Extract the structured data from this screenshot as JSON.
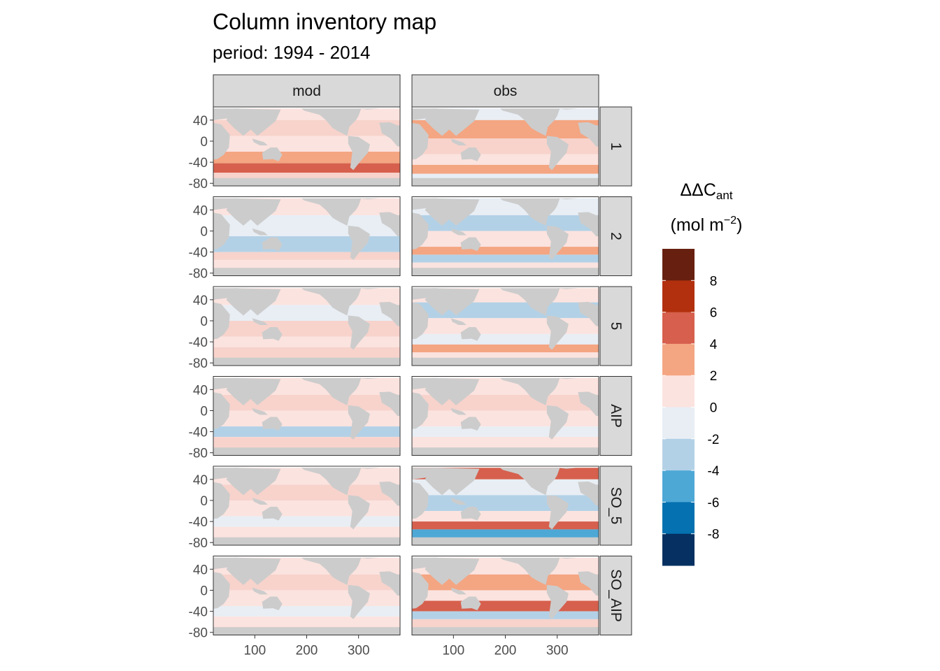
{
  "chart_data": {
    "type": "heatmap",
    "title": "Column inventory map",
    "subtitle": "period: 1994 - 2014",
    "xlabel": "",
    "ylabel": "",
    "facet_columns": [
      "mod",
      "obs"
    ],
    "facet_rows": [
      "1",
      "2",
      "5",
      "AIP",
      "SO_5",
      "SO_AIP"
    ],
    "xlim": [
      20,
      380
    ],
    "ylim": [
      -85,
      65
    ],
    "x_ticks": [
      "100",
      "200",
      "300"
    ],
    "y_ticks": [
      "40",
      "0",
      "-40",
      "-80"
    ],
    "land_color": "#cccccc",
    "legend": {
      "title": "ΔΔC",
      "title_subscript": "ant",
      "unit_prefix": "(mol m",
      "unit_superscript": "−2",
      "unit_suffix": ")",
      "placement": "right",
      "breaks": [
        "8",
        "6",
        "4",
        "2",
        "0",
        "-2",
        "-4",
        "-6",
        "-8"
      ],
      "colors_top_to_bottom": [
        "#67200f",
        "#b2300e",
        "#d6604d",
        "#f4a582",
        "#fbe3df",
        "#e8eef4",
        "#b3d1e6",
        "#4ea8d6",
        "#0571b0",
        "#053061"
      ]
    },
    "panels": [
      {
        "row": "1",
        "col": "mod",
        "bands": [
          {
            "lat": [
              40,
              62
            ],
            "level": 0
          },
          {
            "lat": [
              10,
              40
            ],
            "level": 1
          },
          {
            "lat": [
              -20,
              10
            ],
            "level": 0
          },
          {
            "lat": [
              -42,
              -20
            ],
            "level": 2
          },
          {
            "lat": [
              -60,
              -42
            ],
            "level": 3
          },
          {
            "lat": [
              -72,
              -60
            ],
            "level": 1
          }
        ]
      },
      {
        "row": "1",
        "col": "obs",
        "bands": [
          {
            "lat": [
              40,
              62
            ],
            "level": -1
          },
          {
            "lat": [
              5,
              40
            ],
            "level": 2
          },
          {
            "lat": [
              -25,
              5
            ],
            "level": 1
          },
          {
            "lat": [
              -45,
              -25
            ],
            "level": 0
          },
          {
            "lat": [
              -62,
              -45
            ],
            "level": 2
          },
          {
            "lat": [
              -72,
              -62
            ],
            "level": -1
          }
        ]
      },
      {
        "row": "2",
        "col": "mod",
        "bands": [
          {
            "lat": [
              30,
              62
            ],
            "level": 0
          },
          {
            "lat": [
              -10,
              30
            ],
            "level": -1
          },
          {
            "lat": [
              -40,
              -10
            ],
            "level": -2
          },
          {
            "lat": [
              -55,
              -40
            ],
            "level": 1
          },
          {
            "lat": [
              -72,
              -55
            ],
            "level": 0
          }
        ]
      },
      {
        "row": "2",
        "col": "obs",
        "bands": [
          {
            "lat": [
              30,
              62
            ],
            "level": -1
          },
          {
            "lat": [
              0,
              30
            ],
            "level": -2
          },
          {
            "lat": [
              -30,
              0
            ],
            "level": 0
          },
          {
            "lat": [
              -45,
              -30
            ],
            "level": 2
          },
          {
            "lat": [
              -60,
              -45
            ],
            "level": -2
          },
          {
            "lat": [
              -72,
              -60
            ],
            "level": 0
          }
        ]
      },
      {
        "row": "5",
        "col": "mod",
        "bands": [
          {
            "lat": [
              30,
              62
            ],
            "level": 0
          },
          {
            "lat": [
              0,
              30
            ],
            "level": -1
          },
          {
            "lat": [
              -30,
              0
            ],
            "level": 1
          },
          {
            "lat": [
              -50,
              -30
            ],
            "level": 0
          },
          {
            "lat": [
              -72,
              -50
            ],
            "level": 1
          }
        ]
      },
      {
        "row": "5",
        "col": "obs",
        "bands": [
          {
            "lat": [
              35,
              62
            ],
            "level": 0
          },
          {
            "lat": [
              5,
              35
            ],
            "level": -2
          },
          {
            "lat": [
              -25,
              5
            ],
            "level": 0
          },
          {
            "lat": [
              -45,
              -25
            ],
            "level": -1
          },
          {
            "lat": [
              -60,
              -45
            ],
            "level": 2
          },
          {
            "lat": [
              -72,
              -60
            ],
            "level": 0
          }
        ]
      },
      {
        "row": "AIP",
        "col": "mod",
        "bands": [
          {
            "lat": [
              30,
              62
            ],
            "level": 0
          },
          {
            "lat": [
              0,
              30
            ],
            "level": 1
          },
          {
            "lat": [
              -30,
              0
            ],
            "level": 0
          },
          {
            "lat": [
              -50,
              -30
            ],
            "level": -2
          },
          {
            "lat": [
              -72,
              -50
            ],
            "level": 1
          }
        ]
      },
      {
        "row": "AIP",
        "col": "obs",
        "bands": [
          {
            "lat": [
              30,
              62
            ],
            "level": 0
          },
          {
            "lat": [
              0,
              30
            ],
            "level": 1
          },
          {
            "lat": [
              -30,
              0
            ],
            "level": 0
          },
          {
            "lat": [
              -50,
              -30
            ],
            "level": -1
          },
          {
            "lat": [
              -72,
              -50
            ],
            "level": 0
          }
        ]
      },
      {
        "row": "SO_5",
        "col": "mod",
        "bands": [
          {
            "lat": [
              30,
              62
            ],
            "level": 0
          },
          {
            "lat": [
              0,
              30
            ],
            "level": 1
          },
          {
            "lat": [
              -30,
              0
            ],
            "level": 0
          },
          {
            "lat": [
              -50,
              -30
            ],
            "level": -1
          },
          {
            "lat": [
              -72,
              -50
            ],
            "level": 0
          }
        ]
      },
      {
        "row": "SO_5",
        "col": "obs",
        "bands": [
          {
            "lat": [
              40,
              62
            ],
            "level": 3
          },
          {
            "lat": [
              10,
              40
            ],
            "level": -1
          },
          {
            "lat": [
              -20,
              10
            ],
            "level": -2
          },
          {
            "lat": [
              -40,
              -20
            ],
            "level": 0
          },
          {
            "lat": [
              -55,
              -40
            ],
            "level": 3
          },
          {
            "lat": [
              -72,
              -55
            ],
            "level": -3
          }
        ]
      },
      {
        "row": "SO_AIP",
        "col": "mod",
        "bands": [
          {
            "lat": [
              30,
              62
            ],
            "level": 0
          },
          {
            "lat": [
              0,
              30
            ],
            "level": 1
          },
          {
            "lat": [
              -30,
              0
            ],
            "level": 0
          },
          {
            "lat": [
              -50,
              -30
            ],
            "level": -1
          },
          {
            "lat": [
              -72,
              -50
            ],
            "level": 0
          }
        ]
      },
      {
        "row": "SO_AIP",
        "col": "obs",
        "bands": [
          {
            "lat": [
              30,
              62
            ],
            "level": 0
          },
          {
            "lat": [
              0,
              30
            ],
            "level": 2
          },
          {
            "lat": [
              -20,
              0
            ],
            "level": 0
          },
          {
            "lat": [
              -40,
              -20
            ],
            "level": 3
          },
          {
            "lat": [
              -55,
              -40
            ],
            "level": -2
          },
          {
            "lat": [
              -72,
              -55
            ],
            "level": 1
          }
        ]
      }
    ]
  }
}
